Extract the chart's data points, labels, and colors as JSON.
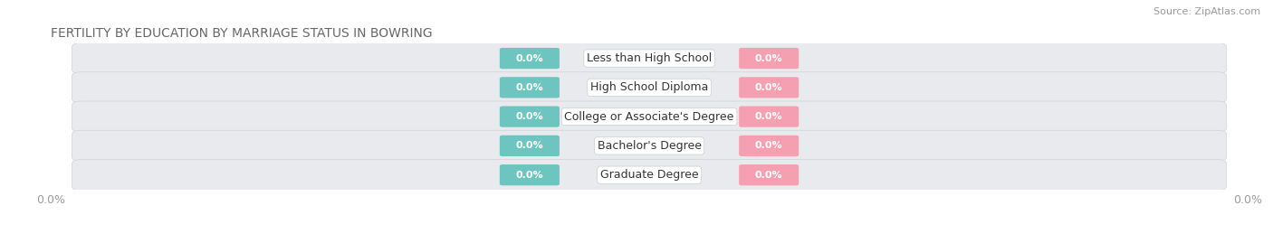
{
  "title": "FERTILITY BY EDUCATION BY MARRIAGE STATUS IN BOWRING",
  "source": "Source: ZipAtlas.com",
  "categories": [
    "Less than High School",
    "High School Diploma",
    "College or Associate's Degree",
    "Bachelor's Degree",
    "Graduate Degree"
  ],
  "married_color": "#6ec4be",
  "unmarried_color": "#f4a0b0",
  "row_bg_color": "#e8eaed",
  "row_shadow_color": "#d0d3d8",
  "label_color": "#ffffff",
  "title_fontsize": 10,
  "source_fontsize": 8,
  "bar_label_fontsize": 8,
  "category_fontsize": 9,
  "legend_fontsize": 9,
  "figure_bg": "#ffffff",
  "axis_tick_color": "#999999",
  "axis_tick_fontsize": 9
}
